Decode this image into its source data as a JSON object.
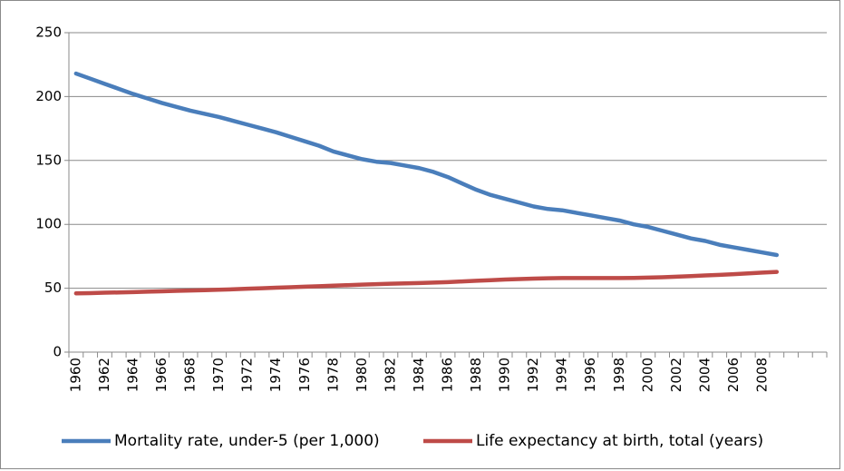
{
  "chart_data": {
    "type": "line",
    "categories": [
      "1960",
      null,
      "1962",
      null,
      "1964",
      null,
      "1966",
      null,
      "1968",
      null,
      "1970",
      null,
      "1972",
      null,
      "1974",
      null,
      "1976",
      null,
      "1978",
      null,
      "1980",
      null,
      "1982",
      null,
      "1984",
      null,
      "1986",
      null,
      "1988",
      null,
      "1990",
      null,
      "1992",
      null,
      "1994",
      null,
      "1996",
      null,
      "1998",
      null,
      "2000",
      null,
      "2002",
      null,
      "2004",
      null,
      "2006",
      null,
      "2008",
      null,
      null,
      null,
      null
    ],
    "series": [
      {
        "name": "Mortality rate, under-5 (per 1,000)",
        "color": "#4a7ebb",
        "values": [
          218,
          214,
          210,
          206,
          202,
          198.5,
          195,
          192,
          189,
          186.5,
          184,
          181,
          178,
          175,
          172,
          168.5,
          165,
          161.5,
          157,
          154,
          151,
          149,
          148,
          146,
          144,
          141,
          137,
          132,
          127,
          123,
          120,
          117,
          114,
          112,
          111,
          109,
          107,
          105,
          103,
          100,
          98,
          95,
          92,
          89,
          87,
          84,
          82,
          80,
          78,
          76,
          null,
          null,
          null
        ]
      },
      {
        "name": "Life expectancy at birth, total (years)",
        "color": "#be4b48",
        "values": [
          46,
          46.2,
          46.5,
          46.7,
          47,
          47.3,
          47.6,
          47.9,
          48.2,
          48.5,
          48.8,
          49.2,
          49.6,
          50,
          50.4,
          50.8,
          51.2,
          51.6,
          52,
          52.4,
          52.8,
          53.2,
          53.5,
          53.8,
          54.1,
          54.4,
          54.8,
          55.3,
          55.8,
          56.3,
          56.8,
          57.2,
          57.5,
          57.8,
          58,
          58,
          58,
          58,
          58,
          58.1,
          58.3,
          58.6,
          59,
          59.5,
          60,
          60.5,
          61,
          61.6,
          62.2,
          62.8,
          null,
          null,
          null
        ]
      }
    ],
    "ylim": [
      0,
      250
    ],
    "yticks": [
      0,
      50,
      100,
      150,
      200,
      250
    ],
    "grid": true,
    "legend": "bottom"
  }
}
